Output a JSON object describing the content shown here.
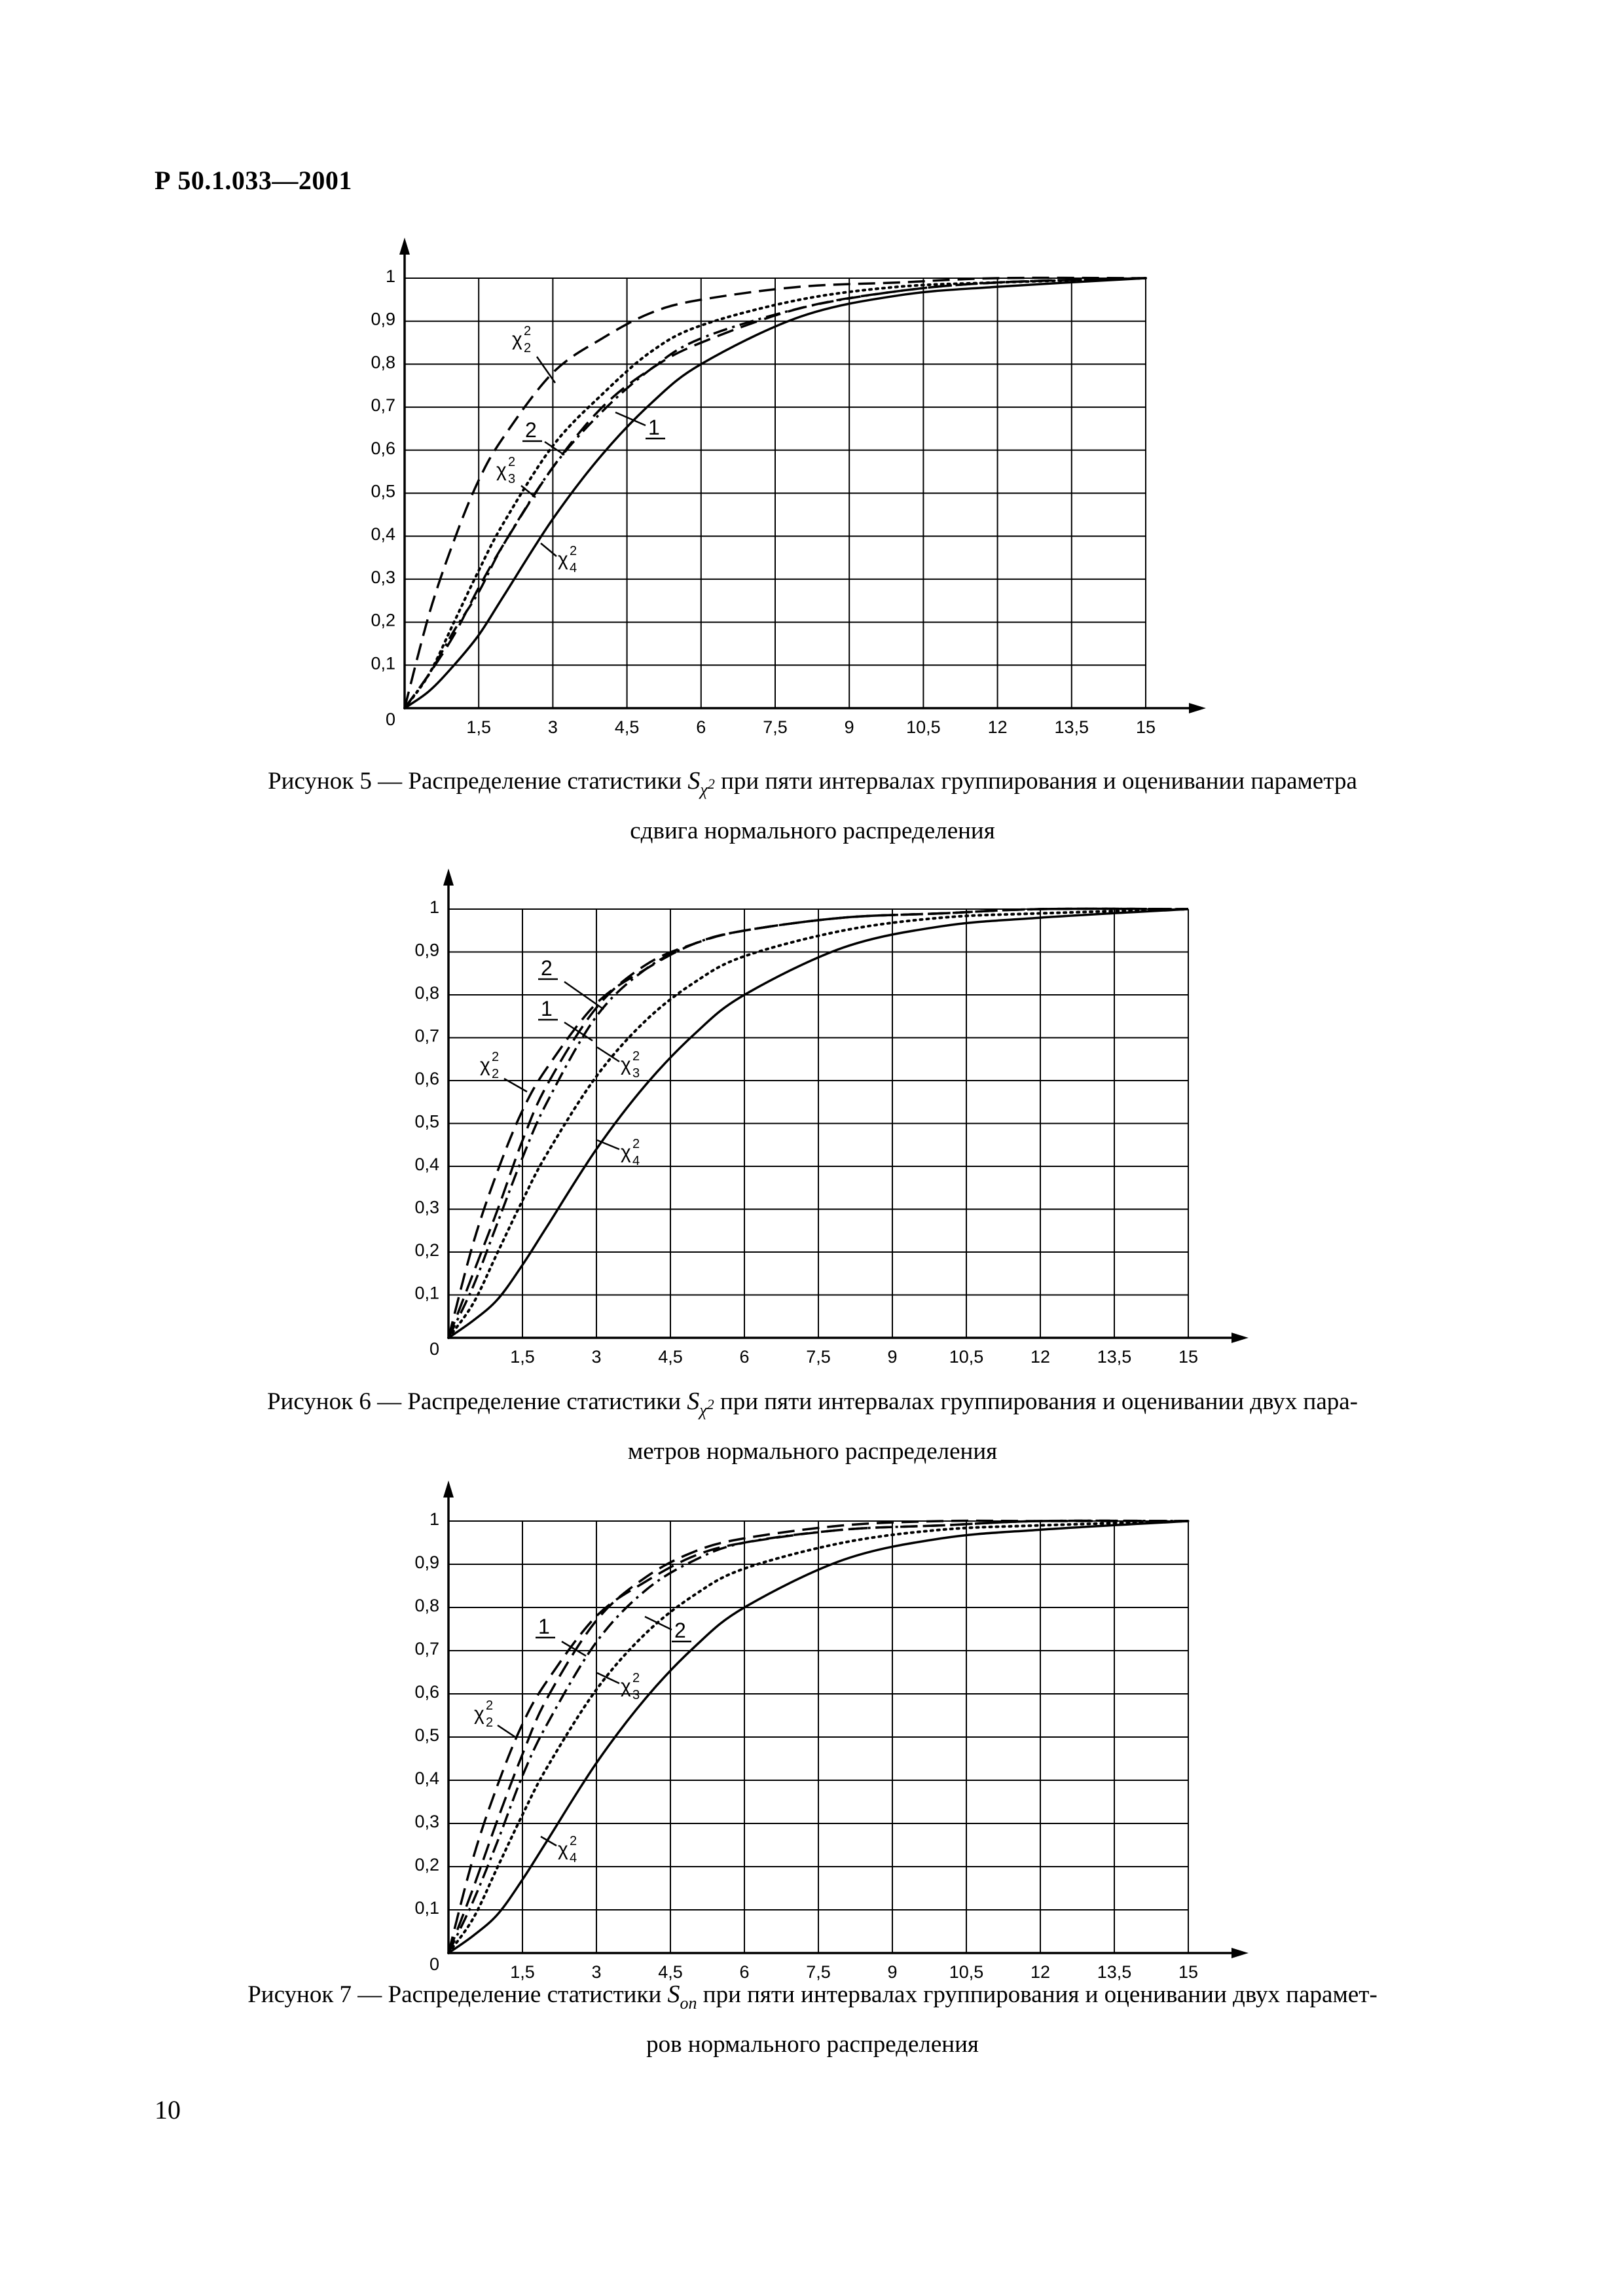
{
  "header": {
    "doc_code": "Р 50.1.033—2001"
  },
  "footer": {
    "page_number": "10"
  },
  "figures": [
    {
      "caption_lead": "Рисунок 5 — Распределение статистики",
      "caption_symbol": "S",
      "caption_sub": "χ",
      "caption_sup": "2",
      "caption_rest": "при пяти интервалах группирования и оценивании параметра",
      "caption_line2": "сдвига нормального распределения"
    },
    {
      "caption_lead": "Рисунок 6 — Распределение статистики",
      "caption_symbol": "S",
      "caption_sub": "χ",
      "caption_sup": "2",
      "caption_rest": "при пяти интервалах группирования и оценивании двух пара-",
      "caption_line2": "метров нормального распределения"
    },
    {
      "caption_lead": "Рисунок 7 — Распределение статистики",
      "caption_symbol": "S",
      "caption_sub": "оп",
      "caption_sup": "",
      "caption_rest": "при пяти интервалах группирования и оценивании двух парамет-",
      "caption_line2": "ров нормального распределения"
    }
  ],
  "chart_data": [
    {
      "type": "line",
      "x_ticks": [
        "1,5",
        "3",
        "4,5",
        "6",
        "7,5",
        "9",
        "10,5",
        "12",
        "13,5",
        "15"
      ],
      "y_ticks": [
        "0,1",
        "0,2",
        "0,3",
        "0,4",
        "0,5",
        "0,6",
        "0,7",
        "0,8",
        "0,9",
        "1"
      ],
      "origin_label": "0",
      "xlim": [
        0,
        15
      ],
      "ylim": [
        0,
        1
      ],
      "grid": true,
      "series": [
        {
          "name": "χ2 2",
          "style": "dashed",
          "x": [
            0,
            0.5,
            1,
            1.5,
            2,
            3,
            4,
            5,
            6,
            8,
            10,
            12,
            15
          ],
          "y": [
            0,
            0.22,
            0.39,
            0.53,
            0.63,
            0.78,
            0.86,
            0.92,
            0.95,
            0.98,
            0.99,
            1.0,
            1.0
          ]
        },
        {
          "name": "2",
          "style": "dashdot",
          "x": [
            0,
            0.5,
            1,
            1.5,
            2,
            3,
            4,
            5,
            6,
            8,
            10,
            12,
            15
          ],
          "y": [
            0,
            0.08,
            0.18,
            0.27,
            0.38,
            0.56,
            0.69,
            0.79,
            0.86,
            0.93,
            0.97,
            0.99,
            1.0
          ]
        },
        {
          "name": "χ2 3",
          "style": "dotted",
          "x": [
            0,
            0.5,
            1,
            1.5,
            2,
            3,
            4,
            5,
            6,
            8,
            10,
            12,
            15
          ],
          "y": [
            0,
            0.08,
            0.2,
            0.32,
            0.43,
            0.61,
            0.73,
            0.83,
            0.89,
            0.95,
            0.98,
            0.99,
            1.0
          ]
        },
        {
          "name": "1",
          "style": "dashed",
          "x": [
            0,
            0.5,
            1,
            1.5,
            2,
            3,
            4,
            5,
            6,
            8,
            10,
            12,
            15
          ],
          "y": [
            0,
            0.08,
            0.17,
            0.28,
            0.38,
            0.56,
            0.7,
            0.79,
            0.85,
            0.93,
            0.97,
            0.99,
            1.0
          ]
        },
        {
          "name": "χ2 4",
          "style": "solid",
          "x": [
            0,
            0.5,
            1,
            1.5,
            2,
            3,
            4,
            5,
            6,
            8,
            10,
            12,
            15
          ],
          "y": [
            0,
            0.04,
            0.1,
            0.17,
            0.26,
            0.44,
            0.59,
            0.71,
            0.8,
            0.91,
            0.96,
            0.98,
            1.0
          ]
        }
      ],
      "annotations": [
        "χ2 2",
        "2",
        "χ2 3",
        "1",
        "χ2 4"
      ]
    },
    {
      "type": "line",
      "x_ticks": [
        "1,5",
        "3",
        "4,5",
        "6",
        "7,5",
        "9",
        "10,5",
        "12",
        "13,5",
        "15"
      ],
      "y_ticks": [
        "0,1",
        "0,2",
        "0,3",
        "0,4",
        "0,5",
        "0,6",
        "0,7",
        "0,8",
        "0,9",
        "1"
      ],
      "origin_label": "0",
      "xlim": [
        0,
        15
      ],
      "ylim": [
        0,
        1
      ],
      "grid": true,
      "series": [
        {
          "name": "2",
          "style": "dashed",
          "x": [
            0,
            0.5,
            1,
            1.5,
            2,
            3,
            4,
            5,
            6,
            8,
            10,
            12,
            15
          ],
          "y": [
            0,
            0.15,
            0.3,
            0.46,
            0.59,
            0.77,
            0.87,
            0.92,
            0.95,
            0.98,
            0.99,
            1.0,
            1.0
          ]
        },
        {
          "name": "1",
          "style": "dashdot",
          "x": [
            0,
            0.5,
            1,
            1.5,
            2,
            3,
            4,
            5,
            6,
            8,
            10,
            12,
            15
          ],
          "y": [
            0,
            0.12,
            0.27,
            0.42,
            0.55,
            0.75,
            0.86,
            0.92,
            0.95,
            0.98,
            0.99,
            1.0,
            1.0
          ]
        },
        {
          "name": "χ2 2",
          "style": "dashed",
          "x": [
            0,
            0.5,
            1,
            1.5,
            2,
            3,
            4,
            5,
            6,
            8,
            10,
            12,
            15
          ],
          "y": [
            0,
            0.22,
            0.39,
            0.53,
            0.63,
            0.78,
            0.86,
            0.92,
            0.95,
            0.98,
            0.99,
            1.0,
            1.0
          ]
        },
        {
          "name": "χ2 3",
          "style": "dotted",
          "x": [
            0,
            0.5,
            1,
            1.5,
            2,
            3,
            4,
            5,
            6,
            8,
            10,
            12,
            15
          ],
          "y": [
            0,
            0.08,
            0.2,
            0.32,
            0.43,
            0.61,
            0.74,
            0.83,
            0.89,
            0.95,
            0.98,
            0.99,
            1.0
          ]
        },
        {
          "name": "χ2 4",
          "style": "solid",
          "x": [
            0,
            0.5,
            1,
            1.5,
            2,
            3,
            4,
            5,
            6,
            8,
            10,
            12,
            15
          ],
          "y": [
            0,
            0.04,
            0.09,
            0.17,
            0.26,
            0.44,
            0.59,
            0.71,
            0.8,
            0.91,
            0.96,
            0.98,
            1.0
          ]
        }
      ],
      "annotations": [
        "2",
        "1",
        "χ2 2",
        "χ2 3",
        "χ2 4"
      ]
    },
    {
      "type": "line",
      "x_ticks": [
        "1,5",
        "3",
        "4,5",
        "6",
        "7,5",
        "9",
        "10,5",
        "12",
        "13,5",
        "15"
      ],
      "y_ticks": [
        "0,1",
        "0,2",
        "0,3",
        "0,4",
        "0,5",
        "0,6",
        "0,7",
        "0,8",
        "0,9",
        "1"
      ],
      "origin_label": "0",
      "xlim": [
        0,
        15
      ],
      "ylim": [
        0,
        1
      ],
      "grid": true,
      "series": [
        {
          "name": "1",
          "style": "dashed",
          "x": [
            0,
            0.5,
            1,
            1.5,
            2,
            3,
            4,
            5,
            6,
            8,
            10,
            12,
            15
          ],
          "y": [
            0,
            0.15,
            0.31,
            0.46,
            0.59,
            0.77,
            0.87,
            0.93,
            0.96,
            0.99,
            1.0,
            1.0,
            1.0
          ]
        },
        {
          "name": "χ2 2",
          "style": "dashed",
          "x": [
            0,
            0.5,
            1,
            1.5,
            2,
            3,
            4,
            5,
            6,
            8,
            10,
            12,
            15
          ],
          "y": [
            0,
            0.22,
            0.39,
            0.53,
            0.63,
            0.78,
            0.86,
            0.92,
            0.95,
            0.98,
            0.99,
            1.0,
            1.0
          ]
        },
        {
          "name": "2",
          "style": "dashdot",
          "x": [
            0,
            0.5,
            1,
            1.5,
            2,
            3,
            4,
            5,
            6,
            8,
            10,
            12,
            15
          ],
          "y": [
            0,
            0.12,
            0.26,
            0.41,
            0.53,
            0.72,
            0.84,
            0.91,
            0.95,
            0.98,
            0.99,
            1.0,
            1.0
          ]
        },
        {
          "name": "χ2 3",
          "style": "dotted",
          "x": [
            0,
            0.5,
            1,
            1.5,
            2,
            3,
            4,
            5,
            6,
            8,
            10,
            12,
            15
          ],
          "y": [
            0,
            0.08,
            0.2,
            0.32,
            0.43,
            0.61,
            0.74,
            0.83,
            0.89,
            0.95,
            0.98,
            0.99,
            1.0
          ]
        },
        {
          "name": "χ2 4",
          "style": "solid",
          "x": [
            0,
            0.5,
            1,
            1.5,
            2,
            3,
            4,
            5,
            6,
            8,
            10,
            12,
            15
          ],
          "y": [
            0,
            0.04,
            0.09,
            0.17,
            0.26,
            0.44,
            0.59,
            0.71,
            0.8,
            0.91,
            0.96,
            0.98,
            1.0
          ]
        }
      ],
      "annotations": [
        "1",
        "χ2 2",
        "2",
        "χ2 3",
        "χ2 4"
      ]
    }
  ]
}
